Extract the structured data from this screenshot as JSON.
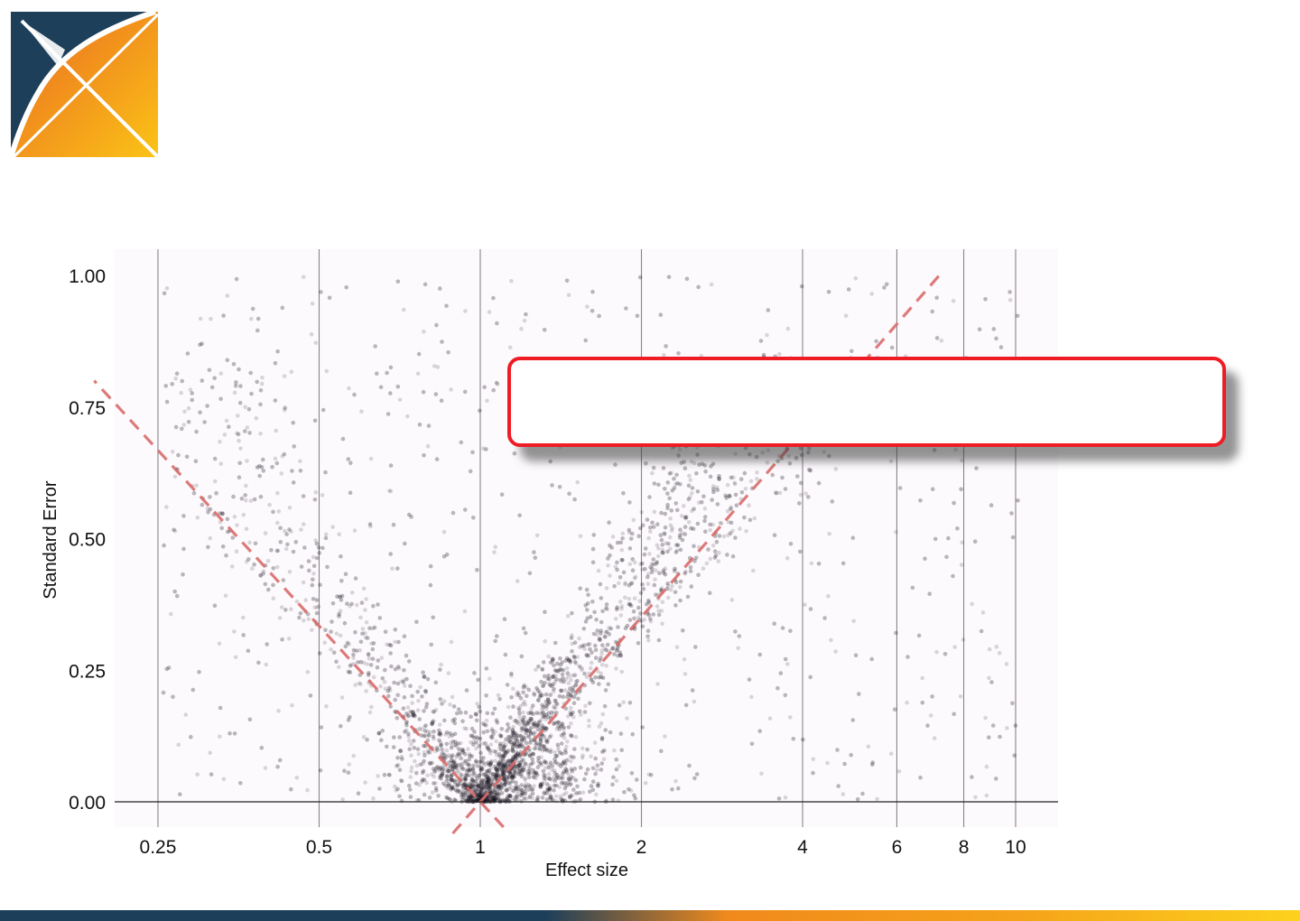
{
  "logo": {
    "icon": "x-logo-icon",
    "colors": {
      "navy": "#1e3f5a",
      "orange": "#ef7d1f",
      "yellow": "#fbbf16"
    }
  },
  "callout": {
    "border_color": "#ee1c25",
    "text": ""
  },
  "bottom_bar": {
    "colors": [
      "#1e3f5a",
      "#f08a1c",
      "#fcd21c"
    ]
  },
  "chart_data": {
    "type": "scatter",
    "title": "",
    "xlabel": "Effect size",
    "ylabel": "Standard Error",
    "x_scale": "log",
    "xlim": [
      0.19,
      13.6
    ],
    "ylim": [
      -0.05,
      1.05
    ],
    "x_ticks": [
      0.25,
      0.5,
      1,
      2,
      4,
      6,
      8,
      10
    ],
    "x_tick_labels": [
      "0.25",
      "0.5",
      "1",
      "2",
      "4",
      "6",
      "8",
      "10"
    ],
    "y_ticks": [
      0,
      0.25,
      0.5,
      0.75,
      1
    ],
    "y_tick_labels": [
      "0.00",
      "0.25",
      "0.50",
      "0.75",
      "1.00"
    ],
    "grid": "vertical",
    "point_color": "#1a1020",
    "background_color": "#fdfafd",
    "reference_lines": [
      {
        "name": "lower-bound",
        "style": "dashed",
        "color": "#d96b6b",
        "points": [
          [
            1,
            0
          ],
          [
            0.19,
            0.8
          ]
        ]
      },
      {
        "name": "upper-bound",
        "style": "dashed",
        "color": "#d96b6b",
        "points": [
          [
            1,
            0
          ],
          [
            7.2,
            1.0
          ]
        ]
      }
    ]
  }
}
